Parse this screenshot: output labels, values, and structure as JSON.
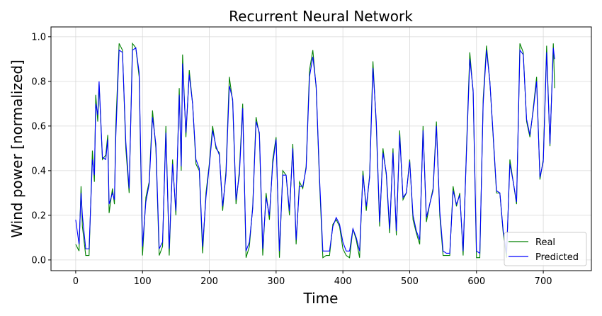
{
  "chart_data": {
    "type": "line",
    "title": "Recurrent Neural Network",
    "xlabel": "Time",
    "ylabel": "Wind power [normalized]",
    "x": [
      0,
      5,
      8,
      10,
      15,
      20,
      25,
      28,
      30,
      33,
      35,
      40,
      45,
      48,
      50,
      55,
      58,
      60,
      65,
      70,
      75,
      80,
      85,
      90,
      95,
      100,
      105,
      110,
      115,
      120,
      125,
      130,
      135,
      140,
      145,
      150,
      155,
      158,
      160,
      165,
      170,
      175,
      180,
      185,
      190,
      195,
      200,
      205,
      210,
      215,
      220,
      225,
      230,
      235,
      240,
      245,
      250,
      255,
      260,
      265,
      270,
      275,
      280,
      285,
      290,
      295,
      300,
      305,
      310,
      315,
      320,
      325,
      330,
      335,
      340,
      345,
      350,
      355,
      360,
      365,
      370,
      375,
      380,
      385,
      390,
      395,
      400,
      405,
      410,
      415,
      420,
      425,
      430,
      435,
      440,
      445,
      450,
      455,
      460,
      465,
      470,
      475,
      480,
      485,
      490,
      495,
      500,
      505,
      510,
      515,
      520,
      525,
      530,
      535,
      540,
      545,
      550,
      555,
      560,
      565,
      570,
      575,
      580,
      585,
      590,
      595,
      600,
      605,
      610,
      615,
      620,
      625,
      630,
      635,
      640,
      645,
      650,
      655,
      660,
      665,
      670,
      675,
      680,
      685,
      690,
      695,
      700,
      705,
      710,
      715,
      717
    ],
    "series": [
      {
        "name": "Real",
        "color": "#008000",
        "values": [
          0.07,
          0.04,
          0.33,
          0.15,
          0.02,
          0.02,
          0.49,
          0.35,
          0.74,
          0.62,
          0.79,
          0.45,
          0.47,
          0.56,
          0.21,
          0.32,
          0.25,
          0.6,
          0.97,
          0.94,
          0.5,
          0.3,
          0.97,
          0.95,
          0.82,
          0.02,
          0.28,
          0.35,
          0.67,
          0.5,
          0.02,
          0.06,
          0.6,
          0.02,
          0.45,
          0.2,
          0.77,
          0.4,
          0.92,
          0.55,
          0.85,
          0.7,
          0.43,
          0.4,
          0.03,
          0.3,
          0.43,
          0.6,
          0.5,
          0.48,
          0.22,
          0.4,
          0.82,
          0.71,
          0.25,
          0.4,
          0.7,
          0.01,
          0.06,
          0.24,
          0.64,
          0.56,
          0.02,
          0.3,
          0.18,
          0.45,
          0.55,
          0.01,
          0.4,
          0.38,
          0.2,
          0.52,
          0.07,
          0.35,
          0.32,
          0.42,
          0.85,
          0.94,
          0.77,
          0.35,
          0.01,
          0.02,
          0.02,
          0.16,
          0.18,
          0.15,
          0.05,
          0.02,
          0.01,
          0.14,
          0.09,
          0.01,
          0.4,
          0.22,
          0.38,
          0.89,
          0.6,
          0.15,
          0.5,
          0.38,
          0.12,
          0.5,
          0.11,
          0.58,
          0.27,
          0.3,
          0.45,
          0.18,
          0.12,
          0.07,
          0.6,
          0.17,
          0.25,
          0.32,
          0.62,
          0.2,
          0.02,
          0.02,
          0.02,
          0.33,
          0.24,
          0.3,
          0.02,
          0.5,
          0.93,
          0.75,
          0.01,
          0.01,
          0.72,
          0.96,
          0.8,
          0.55,
          0.3,
          0.3,
          0.12,
          0.01,
          0.45,
          0.35,
          0.25,
          0.97,
          0.93,
          0.62,
          0.55,
          0.68,
          0.82,
          0.36,
          0.45,
          0.96,
          0.51,
          0.97,
          0.77
        ]
      },
      {
        "name": "Predicted",
        "color": "#0000ff",
        "values": [
          0.18,
          0.07,
          0.3,
          0.2,
          0.05,
          0.05,
          0.45,
          0.38,
          0.7,
          0.65,
          0.8,
          0.46,
          0.45,
          0.54,
          0.25,
          0.3,
          0.27,
          0.55,
          0.94,
          0.93,
          0.53,
          0.32,
          0.94,
          0.95,
          0.84,
          0.06,
          0.26,
          0.34,
          0.64,
          0.52,
          0.05,
          0.08,
          0.57,
          0.05,
          0.43,
          0.22,
          0.74,
          0.42,
          0.88,
          0.57,
          0.83,
          0.7,
          0.45,
          0.41,
          0.06,
          0.28,
          0.42,
          0.58,
          0.51,
          0.47,
          0.24,
          0.38,
          0.78,
          0.72,
          0.27,
          0.38,
          0.68,
          0.04,
          0.08,
          0.23,
          0.62,
          0.57,
          0.05,
          0.28,
          0.2,
          0.43,
          0.54,
          0.04,
          0.38,
          0.38,
          0.22,
          0.5,
          0.09,
          0.33,
          0.33,
          0.41,
          0.82,
          0.91,
          0.78,
          0.37,
          0.04,
          0.04,
          0.04,
          0.15,
          0.19,
          0.16,
          0.08,
          0.04,
          0.04,
          0.14,
          0.1,
          0.04,
          0.38,
          0.24,
          0.37,
          0.86,
          0.62,
          0.17,
          0.48,
          0.39,
          0.14,
          0.48,
          0.13,
          0.56,
          0.28,
          0.3,
          0.44,
          0.2,
          0.13,
          0.09,
          0.58,
          0.19,
          0.25,
          0.31,
          0.6,
          0.22,
          0.04,
          0.03,
          0.03,
          0.31,
          0.25,
          0.29,
          0.04,
          0.48,
          0.9,
          0.76,
          0.04,
          0.03,
          0.7,
          0.94,
          0.8,
          0.56,
          0.31,
          0.3,
          0.13,
          0.03,
          0.43,
          0.35,
          0.26,
          0.94,
          0.92,
          0.63,
          0.56,
          0.67,
          0.8,
          0.37,
          0.44,
          0.93,
          0.52,
          0.95,
          0.9
        ]
      }
    ],
    "xlim": [
      -37,
      772
    ],
    "ylim": [
      -0.048,
      1.044
    ],
    "xticks": [
      0,
      100,
      200,
      300,
      400,
      500,
      600,
      700
    ],
    "yticks": [
      {
        "value": 0,
        "label": "0.0"
      },
      {
        "value": 0.2,
        "label": "0.2"
      },
      {
        "value": 0.4,
        "label": "0.4"
      },
      {
        "value": 0.6,
        "label": "0.6"
      },
      {
        "value": 0.8,
        "label": "0.8"
      },
      {
        "value": 1,
        "label": "1.0"
      }
    ],
    "grid": true,
    "legend": "lower right"
  }
}
